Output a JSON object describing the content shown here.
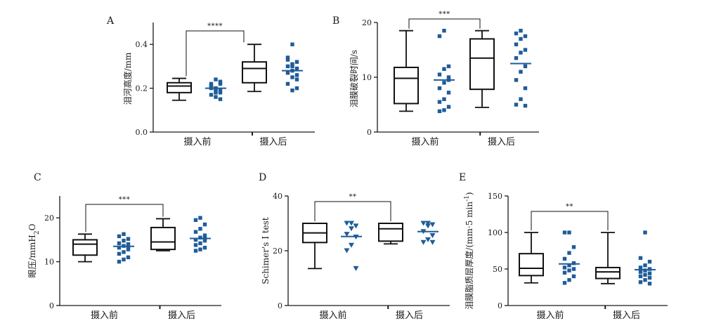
{
  "colors": {
    "axis": "#1a1a1a",
    "box": "#111111",
    "points": "#1f5c99"
  },
  "chart_data": [
    {
      "type": "box-scatter",
      "panel": "A",
      "ylabel": "泪河高度/mm",
      "ylim": [
        0,
        0.5
      ],
      "yticks": [
        0,
        0.2,
        0.4
      ],
      "ytick_labels": [
        "0.0",
        "0.2",
        "0.4"
      ],
      "categories": [
        "摄入前",
        "摄入后"
      ],
      "marker": "square",
      "groups": [
        {
          "name": "摄入前",
          "box": {
            "min": 0.145,
            "q1": 0.18,
            "median": 0.21,
            "q3": 0.225,
            "max": 0.245
          },
          "points": [
            0.2,
            0.21,
            0.15,
            0.16,
            0.17,
            0.18,
            0.19,
            0.22,
            0.23,
            0.24,
            0.2,
            0.19,
            0.18,
            0.21,
            0.22,
            0.2
          ],
          "mean": 0.2
        },
        {
          "name": "摄入后",
          "box": {
            "min": 0.185,
            "q1": 0.225,
            "median": 0.29,
            "q3": 0.32,
            "max": 0.4
          },
          "points": [
            0.4,
            0.33,
            0.32,
            0.31,
            0.3,
            0.29,
            0.28,
            0.27,
            0.26,
            0.25,
            0.22,
            0.2,
            0.19,
            0.34,
            0.24,
            0.3
          ],
          "mean": 0.28
        }
      ],
      "significance": "****"
    },
    {
      "type": "box-scatter",
      "panel": "B",
      "ylabel": "泪膜破裂时间/s",
      "ylim": [
        0,
        20
      ],
      "yticks": [
        0,
        10,
        20
      ],
      "ytick_labels": [
        "0",
        "10",
        "20"
      ],
      "categories": [
        "摄入前",
        "摄入后"
      ],
      "marker": "square",
      "groups": [
        {
          "name": "摄入前",
          "box": {
            "min": 3.8,
            "q1": 5.2,
            "median": 9.8,
            "q3": 11.8,
            "max": 18.5
          },
          "points": [
            18.5,
            17.5,
            12,
            11.5,
            10.5,
            10,
            9,
            8,
            7.2,
            6,
            5.5,
            4.6,
            4,
            3.8,
            9.5
          ],
          "mean": 9.5
        },
        {
          "name": "摄入后",
          "box": {
            "min": 4.5,
            "q1": 7.8,
            "median": 13.5,
            "q3": 17,
            "max": 18.5
          },
          "points": [
            18.5,
            18,
            17.5,
            17,
            16,
            15,
            14.5,
            13.5,
            12,
            11,
            9.5,
            8,
            6,
            5,
            4.8
          ],
          "mean": 12.5
        }
      ],
      "significance": "***"
    },
    {
      "type": "box-scatter",
      "panel": "C",
      "ylabel": "眼压/mmH",
      "ylabel_sub": "2",
      "ylabel_end": "O",
      "ylim": [
        0,
        25
      ],
      "yticks": [
        0,
        10,
        20
      ],
      "ytick_labels": [
        "0",
        "10",
        "20"
      ],
      "categories": [
        "摄入前",
        "摄入后"
      ],
      "marker": "square",
      "groups": [
        {
          "name": "摄入前",
          "box": {
            "min": 10,
            "q1": 11.5,
            "median": 14,
            "q3": 15,
            "max": 16.3
          },
          "points": [
            16.3,
            15.8,
            15.2,
            14.8,
            14.2,
            14,
            13.6,
            13.2,
            12.8,
            12.2,
            11.8,
            11,
            10.5,
            10,
            13.5
          ],
          "mean": 13.5
        },
        {
          "name": "摄入后",
          "box": {
            "min": 12.5,
            "q1": 12.8,
            "median": 14.5,
            "q3": 17.8,
            "max": 19.8
          },
          "points": [
            20,
            19.5,
            18.5,
            17.5,
            16.8,
            16,
            15.5,
            15,
            14.8,
            14.2,
            13.8,
            13.2,
            12.8,
            12.5,
            15.3
          ],
          "mean": 15.3
        }
      ],
      "significance": "***"
    },
    {
      "type": "box-scatter",
      "panel": "D",
      "ylabel": "Schimer's I test",
      "ylim": [
        0,
        40
      ],
      "yticks": [
        0,
        20,
        40
      ],
      "ytick_labels": [
        "0",
        "20",
        "40"
      ],
      "categories": [
        "摄入前",
        "摄入后"
      ],
      "marker": "triangle-down",
      "groups": [
        {
          "name": "摄入前",
          "box": {
            "min": 13.5,
            "q1": 23,
            "median": 26.5,
            "q3": 30,
            "max": 30
          },
          "points": [
            30,
            30,
            29,
            28,
            26,
            25,
            22,
            20,
            13.5
          ],
          "mean": 25.2
        },
        {
          "name": "摄入后",
          "box": {
            "min": 22.5,
            "q1": 23.5,
            "median": 28,
            "q3": 30,
            "max": 30
          },
          "points": [
            30,
            30,
            29.5,
            29,
            27,
            25.5,
            24,
            23,
            23
          ],
          "mean": 27
        }
      ],
      "significance": "**"
    },
    {
      "type": "box-scatter",
      "panel": "E",
      "ylabel": "泪膜脂质层厚度/(mm·5 min",
      "ylabel_sup": "-1",
      "ylabel_end": ")",
      "ylim": [
        0,
        150
      ],
      "yticks": [
        0,
        50,
        100,
        150
      ],
      "ytick_labels": [
        "0",
        "50",
        "100",
        "150"
      ],
      "categories": [
        "摄入前",
        "摄入后"
      ],
      "marker": "square",
      "groups": [
        {
          "name": "摄入前",
          "box": {
            "min": 31,
            "q1": 41,
            "median": 51,
            "q3": 71,
            "max": 100
          },
          "points": [
            100,
            100,
            80,
            72,
            64,
            58,
            55,
            52,
            50,
            48,
            45,
            40,
            35,
            31
          ],
          "mean": 57
        },
        {
          "name": "摄入后",
          "box": {
            "min": 30,
            "q1": 37,
            "median": 46,
            "q3": 52,
            "max": 100
          },
          "points": [
            100,
            65,
            60,
            55,
            52,
            50,
            48,
            46,
            44,
            42,
            40,
            38,
            35,
            32,
            30
          ],
          "mean": 49
        }
      ],
      "significance": "**"
    }
  ]
}
